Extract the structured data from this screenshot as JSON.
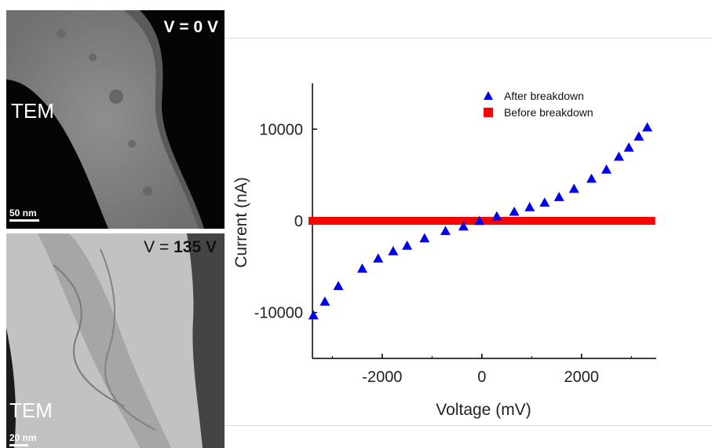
{
  "panels": {
    "top": {
      "label": "TEM",
      "voltage_text": "V = 0 V",
      "scale_text": "50 nm"
    },
    "bottom": {
      "label": "TEM",
      "voltage_prefix": "V = ",
      "voltage_value": "135 V",
      "scale_text": "20 nm"
    }
  },
  "colors": {
    "after": "#0000ee",
    "before": "#ff0000",
    "axis": "#000000"
  },
  "chart_data": {
    "type": "scatter",
    "xlabel": "Voltage (mV)",
    "ylabel": "Current (nA)",
    "xlim": [
      -3400,
      3500
    ],
    "ylim": [
      -15000,
      15000
    ],
    "xticks": [
      -2000,
      0,
      2000
    ],
    "yticks": [
      -10000,
      0,
      10000
    ],
    "xtick_labels": [
      "-2000",
      "0",
      "2000"
    ],
    "ytick_labels": [
      "-10000",
      "0",
      "10000"
    ],
    "grid": false,
    "legend_position": "top-right",
    "series": [
      {
        "name": "After breakdown",
        "marker": "triangle",
        "color": "#0000ee",
        "x": [
          -3380,
          -3150,
          -2880,
          -2400,
          -2080,
          -1780,
          -1500,
          -1150,
          -730,
          -370,
          -50,
          300,
          650,
          960,
          1260,
          1550,
          1850,
          2200,
          2500,
          2750,
          2950,
          3150,
          3320
        ],
        "y": [
          -10300,
          -8800,
          -7100,
          -5200,
          -4100,
          -3300,
          -2700,
          -1900,
          -1100,
          -600,
          0,
          500,
          1000,
          1500,
          2000,
          2600,
          3500,
          4600,
          5600,
          7000,
          8000,
          9200,
          10200
        ]
      },
      {
        "name": "Before breakdown",
        "marker": "square",
        "color": "#ff0000",
        "x_range": [
          -3400,
          3400
        ],
        "y": 0
      }
    ]
  }
}
